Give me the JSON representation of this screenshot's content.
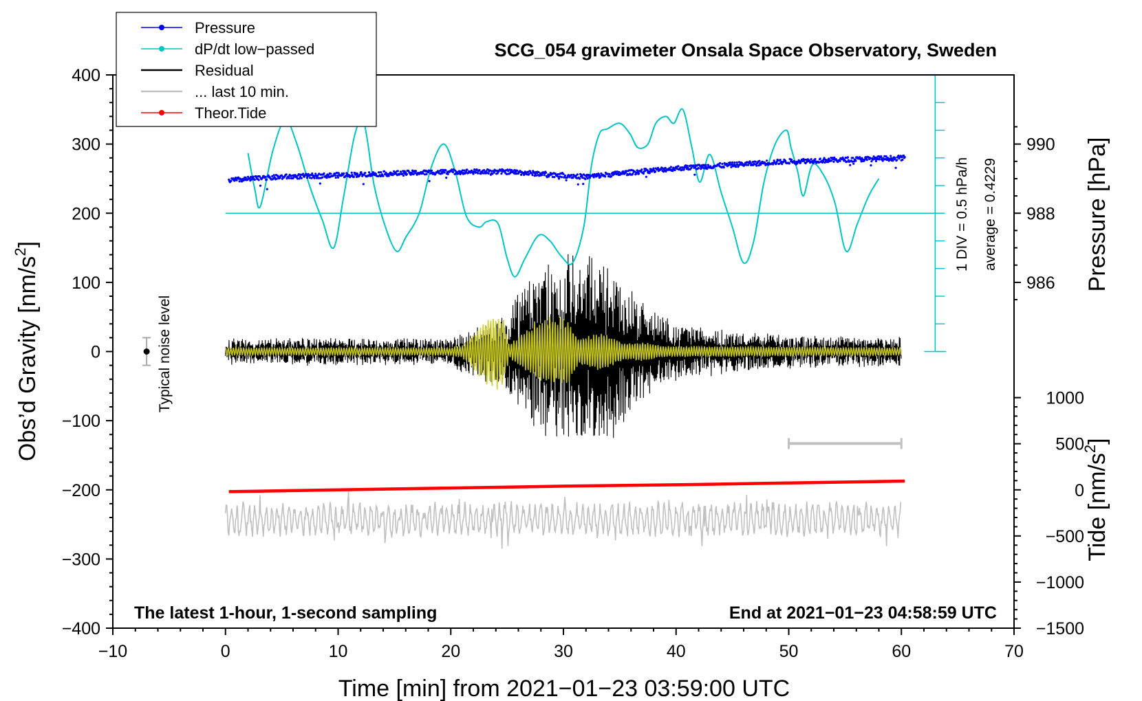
{
  "chart_data": {
    "type": "line",
    "title": "SCG_054 gravimeter Onsala Space Observatory, Sweden",
    "xlabel": "Time [min] from 2021−01−23 03:59:00 UTC",
    "ylabel_left": "Obs’d Gravity [nm/s",
    "ylabel_left_sup": "2",
    "ylabel_left_end": "]",
    "ylabel_right_pressure": "Pressure [hPa]",
    "ylabel_right_tide": "Tide [nm/s",
    "ylabel_right_tide_sup": "2",
    "ylabel_right_tide_end": "]",
    "xlim": [
      -10,
      70
    ],
    "ylim": [
      -400,
      400
    ],
    "x_ticks": [
      "−10",
      "0",
      "10",
      "20",
      "30",
      "40",
      "50",
      "60",
      "70"
    ],
    "x_tick_values": [
      -10,
      0,
      10,
      20,
      30,
      40,
      50,
      60,
      70
    ],
    "y_ticks": [
      "400",
      "300",
      "200",
      "100",
      "0",
      "−100",
      "−200",
      "−300",
      "−400"
    ],
    "y_tick_values": [
      400,
      300,
      200,
      100,
      0,
      -100,
      -200,
      -300,
      -400
    ],
    "pressure_ticks": [
      "990",
      "988",
      "986"
    ],
    "pressure_tick_values": [
      990,
      988,
      986
    ],
    "pressure_axis": {
      "gravity_at_988": 200,
      "gravity_per_hPa": 50
    },
    "tide_ticks": [
      "1000",
      "500",
      "0",
      "−500",
      "−1000",
      "−1500"
    ],
    "tide_tick_values": [
      1000,
      500,
      0,
      -500,
      -1000,
      -1500
    ],
    "tide_axis": {
      "gravity_at_0": -200,
      "gravity_per_unit": 0.13333
    },
    "dpdt_scale": {
      "label_div": "1 DIV = 0.5 hPa/h",
      "label_avg": "average = 0.4229",
      "baseline_gravity": 200,
      "divisions": 10
    },
    "noise_level": {
      "label": "Typical noise level",
      "x": -7,
      "y": 0,
      "half_range": 20
    },
    "last10_bar": {
      "x_start": 50,
      "x_end": 60,
      "y": -133
    },
    "footer_left": "The latest 1-hour, 1-second sampling",
    "footer_right": "End at 2021−01−23 04:58:59 UTC",
    "legend": [
      {
        "label": "Pressure",
        "color": "#0000ff",
        "marker": "dot"
      },
      {
        "label": "dP/dt low−passed",
        "color": "#00c4c4",
        "marker": "dot"
      },
      {
        "label": "Residual",
        "color": "#000000",
        "marker": "none"
      },
      {
        "label": "... last 10 min.",
        "color": "#c0c0c0",
        "marker": "none"
      },
      {
        "label": "Theor.Tide",
        "color": "#ff0000",
        "marker": "dot"
      }
    ],
    "series": [
      {
        "name": "Pressure",
        "color": "#0000ff",
        "units": "hPa",
        "x": [
          0.3,
          5,
          10,
          15,
          20,
          25,
          30,
          32,
          35,
          40,
          45,
          50,
          55,
          60.3
        ],
        "y": [
          988.95,
          989.05,
          989.1,
          989.15,
          989.2,
          989.2,
          989.1,
          989.05,
          989.15,
          989.3,
          989.4,
          989.5,
          989.55,
          989.6
        ]
      },
      {
        "name": "dP/dt low-passed",
        "color": "#00c4c4",
        "units": "gravity-axis",
        "x": [
          2.0,
          2.6,
          3.1,
          4.2,
          5.3,
          6.3,
          7.5,
          8.6,
          9.6,
          10.5,
          11.5,
          12.3,
          13.2,
          14.2,
          15.2,
          16.0,
          17.2,
          18.3,
          19.4,
          20.4,
          21.4,
          22.5,
          23.2,
          24.2,
          25.0,
          25.7,
          26.6,
          27.8,
          28.8,
          29.8,
          30.8,
          31.8,
          32.5,
          33.2,
          33.9,
          35.0,
          35.9,
          36.6,
          37.5,
          38.2,
          39.1,
          39.8,
          40.6,
          41.4,
          42.1,
          43.0,
          44.0,
          45.0,
          46.0,
          46.9,
          47.8,
          48.8,
          49.8,
          50.2,
          50.8,
          51.3,
          52.1,
          53.1,
          54.1,
          55.1,
          56.1,
          57.1,
          58.0
        ],
        "y": [
          287,
          235,
          210,
          290,
          335,
          302,
          238,
          190,
          150,
          225,
          315,
          330,
          240,
          180,
          145,
          165,
          200,
          268,
          300,
          260,
          195,
          180,
          188,
          185,
          135,
          108,
          135,
          168,
          160,
          138,
          128,
          180,
          270,
          315,
          322,
          330,
          315,
          295,
          300,
          330,
          340,
          330,
          350,
          295,
          245,
          285,
          230,
          180,
          128,
          160,
          245,
          300,
          320,
          295,
          260,
          225,
          270,
          255,
          215,
          145,
          185,
          225,
          250
        ]
      },
      {
        "name": "Residual",
        "color": "#000000",
        "units": "nm/s^2",
        "x_range": [
          0,
          60
        ],
        "envelope_t": [
          0,
          20,
          21,
          23,
          25,
          26.5,
          28.5,
          30,
          31.5,
          32.5,
          34,
          36,
          38,
          40,
          44,
          50,
          60
        ],
        "envelope_a": [
          18,
          18,
          28,
          40,
          60,
          90,
          120,
          130,
          120,
          140,
          130,
          85,
          55,
          38,
          30,
          22,
          20
        ]
      },
      {
        "name": "Residual filtered",
        "color": "#cccc22",
        "units": "nm/s^2",
        "x_range": [
          0,
          60
        ],
        "envelope_t": [
          0,
          20,
          21,
          23.5,
          24.6,
          25.2,
          26.5,
          27.5,
          29,
          30.5,
          31.4,
          32.5,
          33.5,
          34.5,
          35.5,
          37,
          39,
          42,
          60
        ],
        "envelope_a": [
          6,
          6,
          10,
          55,
          55,
          10,
          30,
          45,
          55,
          48,
          20,
          25,
          30,
          20,
          12,
          15,
          8,
          8,
          6
        ]
      },
      {
        "name": "Theor.Tide",
        "color": "#ff0000",
        "units": "nm/s^2 (tide axis)",
        "x": [
          0.3,
          10,
          20,
          30,
          40,
          50,
          60.3
        ],
        "y": [
          -20,
          0,
          20,
          40,
          55,
          75,
          95
        ]
      },
      {
        "name": "... last 10 min.",
        "color": "#c0c0c0",
        "units": "nm/s^2 (gravity axis, offset)",
        "x_range": [
          0,
          60
        ],
        "center": -243,
        "amplitude": 20
      }
    ]
  }
}
